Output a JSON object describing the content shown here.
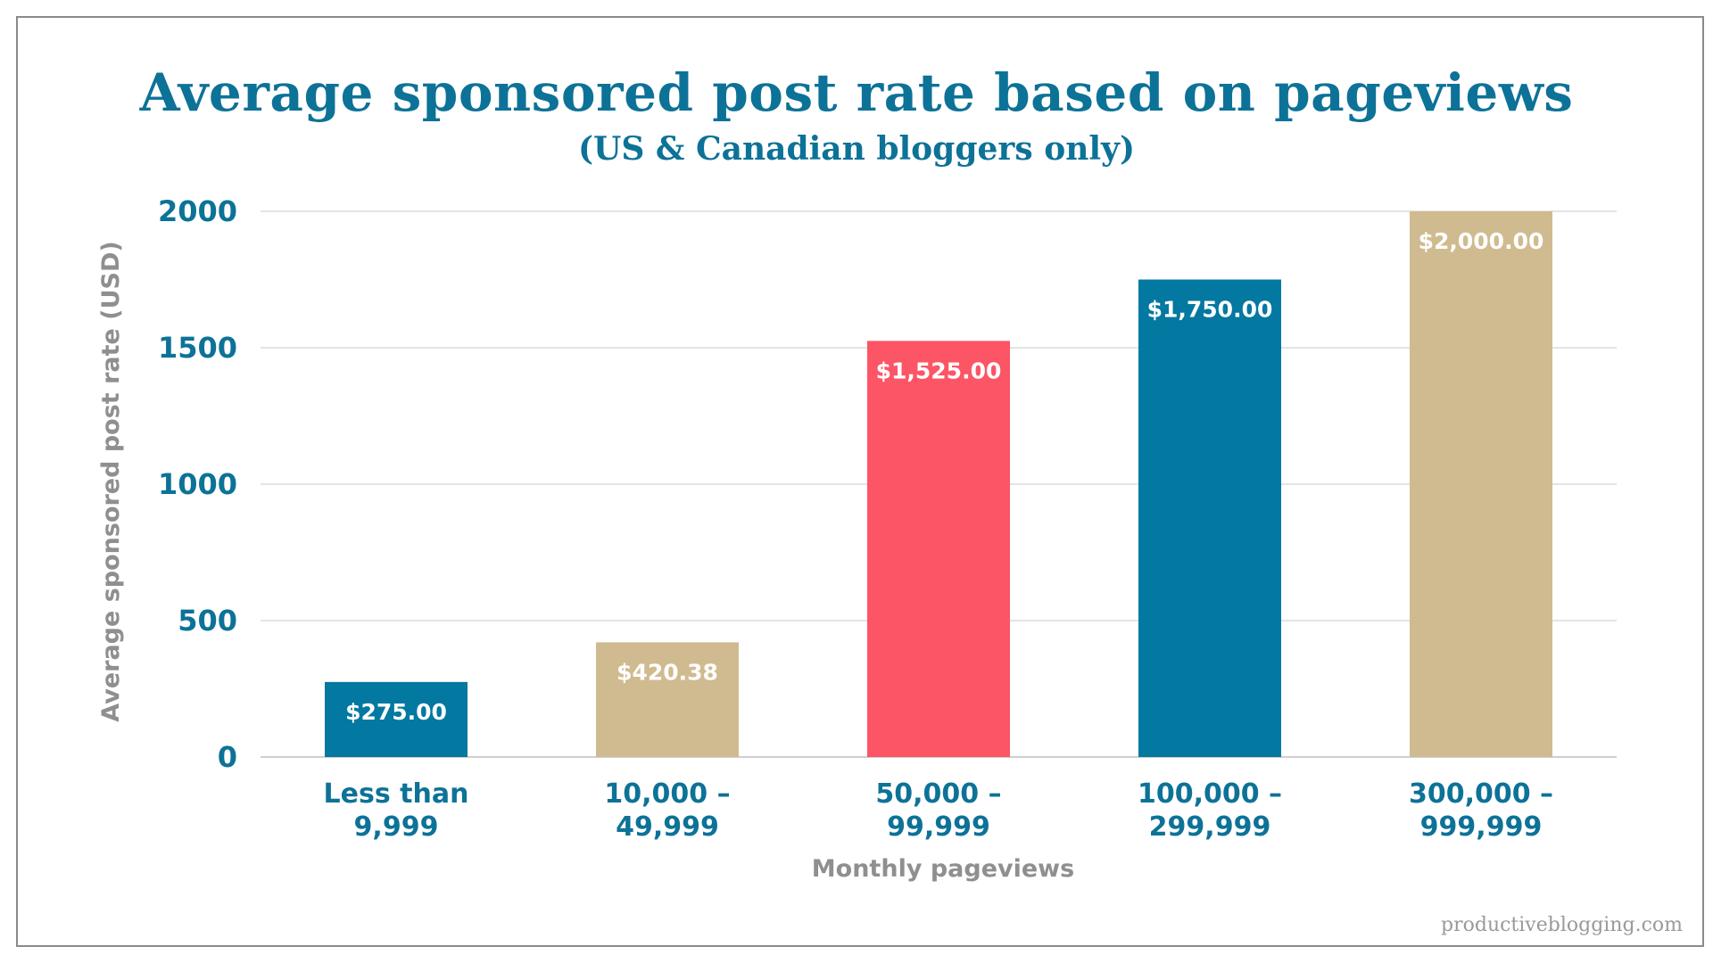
{
  "chart_data": {
    "type": "bar",
    "title": "Average sponsored post rate based on pageviews",
    "subtitle": "(US & Canadian bloggers only)",
    "xlabel": "Monthly pageviews",
    "ylabel": "Average sponsored post rate (USD)",
    "categories": [
      [
        "Less than",
        "9,999"
      ],
      [
        "10,000 –",
        "49,999"
      ],
      [
        "50,000 –",
        "99,999"
      ],
      [
        "100,000 –",
        "299,999"
      ],
      [
        "300,000 –",
        "999,999"
      ]
    ],
    "values": [
      275.0,
      420.38,
      1525.0,
      1750.0,
      2000.0
    ],
    "value_labels": [
      "$275.00",
      "$420.38",
      "$1,525.00",
      "$1,750.00",
      "$2,000.00"
    ],
    "bar_colors": [
      "#0378a0",
      "#cfbb8f",
      "#fc5566",
      "#0378a0",
      "#cfbb8f"
    ],
    "yticks": [
      0,
      500,
      1000,
      1500,
      2000
    ],
    "ylim": [
      0,
      2000
    ],
    "grid": true,
    "legend": "none"
  },
  "watermark": "productiveblogging.com",
  "colors": {
    "title": "#0d7297",
    "axis_title": "#8f8f8f",
    "gridline": "#dcdcdc"
  }
}
